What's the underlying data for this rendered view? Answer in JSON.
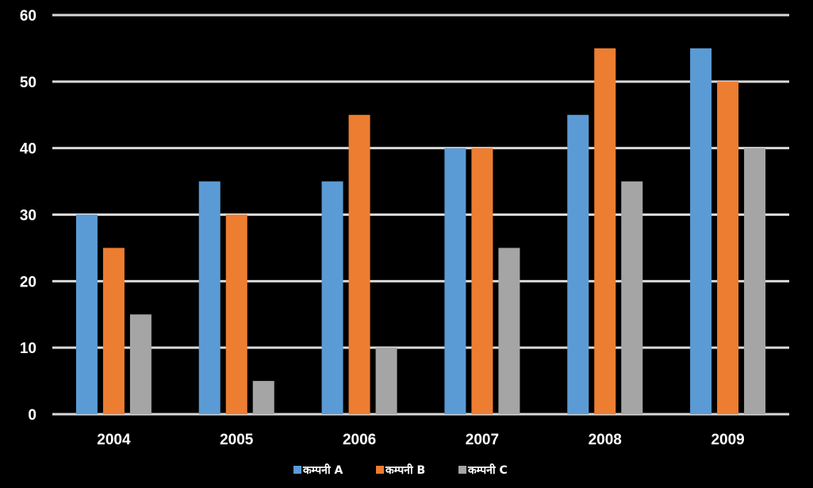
{
  "chart_data": {
    "type": "bar",
    "title": "",
    "xlabel": "",
    "ylabel": "",
    "categories": [
      "2004",
      "2005",
      "2006",
      "2007",
      "2008",
      "2009"
    ],
    "series": [
      {
        "name": "कम्पनी A",
        "color": "#5b9bd5",
        "values": [
          30,
          35,
          35,
          40,
          45,
          55
        ]
      },
      {
        "name": "कम्पनी B",
        "color": "#ed7d31",
        "values": [
          25,
          30,
          45,
          40,
          55,
          50
        ]
      },
      {
        "name": "कम्पनी C",
        "color": "#a5a5a5",
        "values": [
          15,
          5,
          10,
          25,
          35,
          40
        ]
      }
    ],
    "ylim": [
      0,
      60
    ],
    "yticks": [
      0,
      10,
      20,
      30,
      40,
      50,
      60
    ],
    "grid": true,
    "gridColor": "#d9d9d9",
    "legend": "bottom"
  }
}
